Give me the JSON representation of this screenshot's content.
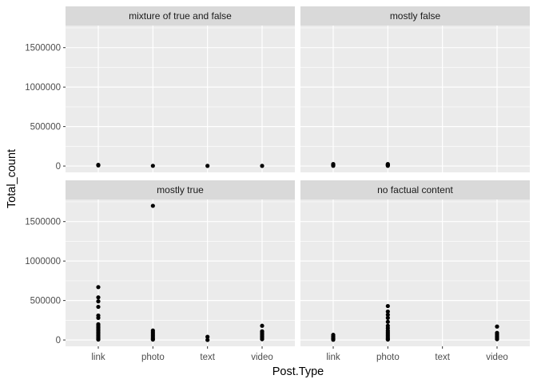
{
  "chart_data": {
    "type": "scatter",
    "facet_type": "facet_wrap",
    "xlabel": "Post.Type",
    "ylabel": "Total_count",
    "categories": [
      "link",
      "photo",
      "text",
      "video"
    ],
    "y_ticks": [
      0,
      500000,
      1000000,
      1500000
    ],
    "y_tick_labels": [
      "0",
      "500000",
      "1000000",
      "1500000"
    ],
    "ylim": [
      -80000,
      1780000
    ],
    "grid": true,
    "legend": "none",
    "colors": {
      "panel_bg": "#ebebeb",
      "grid_major": "#ffffff",
      "strip_bg": "#d9d9d9",
      "point": "#000000"
    },
    "facets": [
      {
        "title": "mixture of true and false",
        "points": [
          {
            "x": "link",
            "y": 8000
          },
          {
            "x": "link",
            "y": 15000
          },
          {
            "x": "photo",
            "y": 3000
          },
          {
            "x": "text",
            "y": 2000
          },
          {
            "x": "video",
            "y": 2000
          }
        ]
      },
      {
        "title": "mostly false",
        "points": [
          {
            "x": "link",
            "y": 3000
          },
          {
            "x": "link",
            "y": 10000
          },
          {
            "x": "link",
            "y": 18000
          },
          {
            "x": "link",
            "y": 25000
          },
          {
            "x": "photo",
            "y": 3000
          },
          {
            "x": "photo",
            "y": 10000
          },
          {
            "x": "photo",
            "y": 18000
          },
          {
            "x": "photo",
            "y": 25000
          }
        ]
      },
      {
        "title": "mostly true",
        "points": [
          {
            "x": "link",
            "y": 670000
          },
          {
            "x": "link",
            "y": 540000
          },
          {
            "x": "link",
            "y": 490000
          },
          {
            "x": "link",
            "y": 420000
          },
          {
            "x": "link",
            "y": 310000
          },
          {
            "x": "link",
            "y": 280000
          },
          {
            "x": "link",
            "y": 200000
          },
          {
            "x": "link",
            "y": 180000
          },
          {
            "x": "link",
            "y": 160000
          },
          {
            "x": "link",
            "y": 140000
          },
          {
            "x": "link",
            "y": 120000
          },
          {
            "x": "link",
            "y": 100000
          },
          {
            "x": "link",
            "y": 80000
          },
          {
            "x": "link",
            "y": 60000
          },
          {
            "x": "link",
            "y": 40000
          },
          {
            "x": "link",
            "y": 20000
          },
          {
            "x": "link",
            "y": 5000
          },
          {
            "x": "photo",
            "y": 1700000
          },
          {
            "x": "photo",
            "y": 120000
          },
          {
            "x": "photo",
            "y": 100000
          },
          {
            "x": "photo",
            "y": 80000
          },
          {
            "x": "photo",
            "y": 60000
          },
          {
            "x": "photo",
            "y": 40000
          },
          {
            "x": "photo",
            "y": 20000
          },
          {
            "x": "photo",
            "y": 5000
          },
          {
            "x": "text",
            "y": 40000
          },
          {
            "x": "text",
            "y": 0
          },
          {
            "x": "video",
            "y": 180000
          },
          {
            "x": "video",
            "y": 110000
          },
          {
            "x": "video",
            "y": 90000
          },
          {
            "x": "video",
            "y": 70000
          },
          {
            "x": "video",
            "y": 50000
          },
          {
            "x": "video",
            "y": 30000
          },
          {
            "x": "video",
            "y": 10000
          }
        ]
      },
      {
        "title": "no factual content",
        "points": [
          {
            "x": "link",
            "y": 65000
          },
          {
            "x": "link",
            "y": 45000
          },
          {
            "x": "link",
            "y": 30000
          },
          {
            "x": "link",
            "y": 15000
          },
          {
            "x": "link",
            "y": 3000
          },
          {
            "x": "photo",
            "y": 430000
          },
          {
            "x": "photo",
            "y": 360000
          },
          {
            "x": "photo",
            "y": 320000
          },
          {
            "x": "photo",
            "y": 280000
          },
          {
            "x": "photo",
            "y": 230000
          },
          {
            "x": "photo",
            "y": 180000
          },
          {
            "x": "photo",
            "y": 150000
          },
          {
            "x": "photo",
            "y": 120000
          },
          {
            "x": "photo",
            "y": 100000
          },
          {
            "x": "photo",
            "y": 80000
          },
          {
            "x": "photo",
            "y": 60000
          },
          {
            "x": "photo",
            "y": 40000
          },
          {
            "x": "photo",
            "y": 20000
          },
          {
            "x": "photo",
            "y": 5000
          },
          {
            "x": "video",
            "y": 170000
          },
          {
            "x": "video",
            "y": 90000
          },
          {
            "x": "video",
            "y": 70000
          },
          {
            "x": "video",
            "y": 50000
          },
          {
            "x": "video",
            "y": 30000
          },
          {
            "x": "video",
            "y": 10000
          }
        ]
      }
    ]
  }
}
